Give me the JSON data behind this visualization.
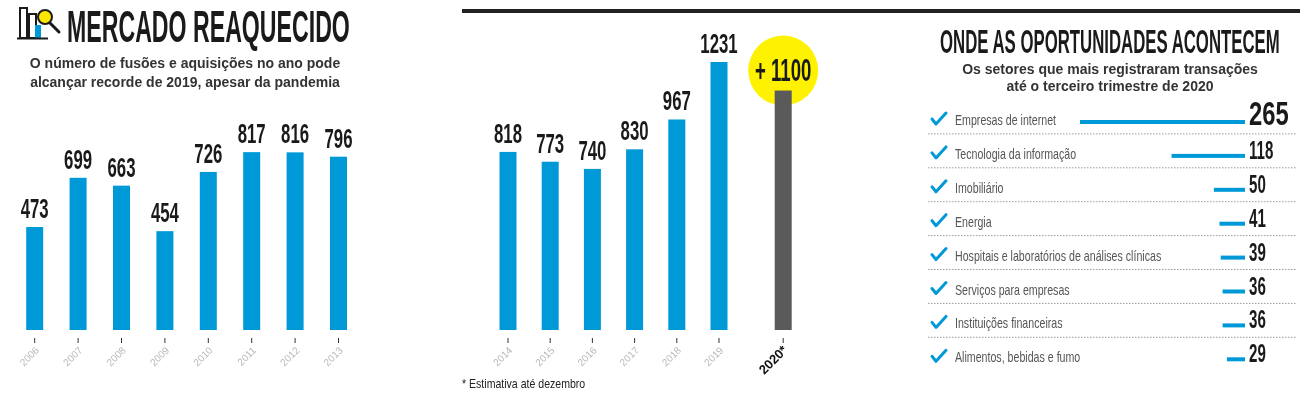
{
  "chart_data": [
    {
      "type": "bar",
      "title": "MERCADO REAQUECIDO",
      "subtitle": "O número de fusões e aquisições no ano pode alcançar recorde de 2019, apesar da pandemia",
      "categories": [
        "2006",
        "2007",
        "2008",
        "2009",
        "2010",
        "2011",
        "2012",
        "2013"
      ],
      "values": [
        473,
        699,
        663,
        454,
        726,
        817,
        816,
        796
      ],
      "color": "#0099d8",
      "data_labels": true
    },
    {
      "type": "bar",
      "categories": [
        "2014",
        "2015",
        "2016",
        "2017",
        "2018",
        "2019",
        "2020*"
      ],
      "values": [
        818,
        773,
        740,
        830,
        967,
        1231,
        1100
      ],
      "colors": [
        "#0099d8",
        "#0099d8",
        "#0099d8",
        "#0099d8",
        "#0099d8",
        "#0099d8",
        "#5a5a5a"
      ],
      "value_labels": [
        "818",
        "773",
        "740",
        "830",
        "967",
        "1231",
        "+ 1100"
      ],
      "annotations": [
        "* Estimativa até dezembro"
      ]
    },
    {
      "type": "bar",
      "orientation": "horizontal",
      "title": "ONDE AS OPORTUNIDADES ACONTECEM",
      "subtitle": "Os setores que mais registraram transações até o terceiro trimestre de 2020",
      "categories": [
        "Empresas de internet",
        "Tecnologia da informação",
        "Imobiliário",
        "Energia",
        "Hospitais e laboratórios de análises clínicas",
        "Serviços para empresas",
        "Instituições financeiras",
        "Alimentos, bebidas e fumo"
      ],
      "values": [
        265,
        118,
        50,
        41,
        39,
        36,
        36,
        29
      ],
      "color": "#0099d8",
      "data_labels": true,
      "grid": "y"
    }
  ]
}
